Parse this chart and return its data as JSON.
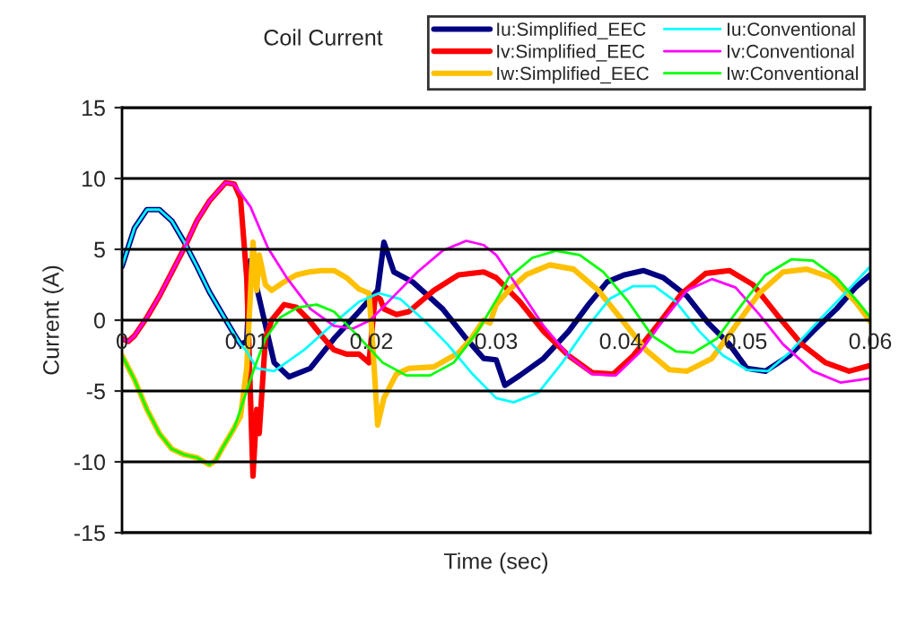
{
  "chart_data": {
    "type": "line",
    "title": "Coil Current",
    "xlabel": "Time (sec)",
    "ylabel": "Current (A)",
    "xlim": [
      0,
      0.06
    ],
    "xticks": [
      0,
      0.01,
      0.02,
      0.03,
      0.04,
      0.05,
      0.06
    ],
    "ylim": [
      -15,
      15
    ],
    "yticks": [
      -15,
      -10,
      -5,
      0,
      5,
      10,
      15
    ],
    "grid": "y",
    "legend": "top right",
    "marker": "none",
    "line_style": "solid",
    "series": [
      {
        "name": "Iu:Simplified_EEC",
        "color": "#000080",
        "x": [
          0,
          0.001,
          0.002,
          0.003,
          0.004,
          0.005,
          0.006,
          0.007,
          0.008,
          0.009,
          0.0095,
          0.01,
          0.0103,
          0.0122,
          0.0134,
          0.0151,
          0.017,
          0.019,
          0.0205,
          0.021,
          0.0218,
          0.0233,
          0.0257,
          0.0276,
          0.029,
          0.03,
          0.0307,
          0.0319,
          0.0338,
          0.0358,
          0.0374,
          0.0389,
          0.0403,
          0.0418,
          0.0434,
          0.0453,
          0.047,
          0.0487,
          0.0501,
          0.0516,
          0.0535,
          0.0554,
          0.0573,
          0.0588,
          0.06
        ],
        "values": [
          3.8,
          6.5,
          7.8,
          7.8,
          7.0,
          5.5,
          3.8,
          2.0,
          0.5,
          -1.0,
          -1.7,
          -1.5,
          4.2,
          -3.0,
          -4.0,
          -3.4,
          -1.3,
          0.6,
          2.1,
          5.5,
          3.4,
          2.7,
          0.8,
          -1.3,
          -2.7,
          -2.8,
          -4.6,
          -3.9,
          -2.7,
          -0.8,
          1.1,
          2.7,
          3.2,
          3.5,
          3.0,
          1.7,
          -0.2,
          -1.7,
          -3.4,
          -3.6,
          -2.5,
          -0.8,
          0.8,
          2.3,
          3.2
        ]
      },
      {
        "name": "Iv:Simplified_EEC",
        "color": "#ff0000",
        "x": [
          0,
          0.0005,
          0.001,
          0.002,
          0.003,
          0.004,
          0.005,
          0.006,
          0.007,
          0.0083,
          0.009,
          0.0095,
          0.01,
          0.0105,
          0.0108,
          0.011,
          0.0115,
          0.012,
          0.013,
          0.014,
          0.015,
          0.016,
          0.017,
          0.018,
          0.019,
          0.0198,
          0.0203,
          0.0207,
          0.021,
          0.022,
          0.023,
          0.025,
          0.027,
          0.029,
          0.03,
          0.0319,
          0.0338,
          0.0358,
          0.0377,
          0.0394,
          0.041,
          0.0429,
          0.0449,
          0.0468,
          0.0487,
          0.0506,
          0.0525,
          0.0545,
          0.0564,
          0.0583,
          0.06
        ],
        "values": [
          -1.3,
          -1.5,
          -1.1,
          0.2,
          1.7,
          3.4,
          5.1,
          7.0,
          8.4,
          9.7,
          9.6,
          8.6,
          3.0,
          -11.0,
          -6.3,
          -8.0,
          -1.3,
          0.0,
          1.1,
          0.9,
          0.0,
          -1.1,
          -2.1,
          -2.4,
          -2.4,
          -3.0,
          1.7,
          1.5,
          0.8,
          0.4,
          0.6,
          2.1,
          3.2,
          3.4,
          3.0,
          1.3,
          -0.8,
          -2.5,
          -3.7,
          -3.8,
          -2.5,
          -0.4,
          1.9,
          3.3,
          3.5,
          2.5,
          0.4,
          -1.7,
          -3.0,
          -3.6,
          -3.2
        ]
      },
      {
        "name": "Iw:Simplified_EEC",
        "color": "#ffc000",
        "x": [
          0,
          0.001,
          0.002,
          0.003,
          0.004,
          0.005,
          0.006,
          0.007,
          0.0075,
          0.008,
          0.009,
          0.0095,
          0.01,
          0.0105,
          0.0108,
          0.011,
          0.0115,
          0.012,
          0.013,
          0.014,
          0.015,
          0.016,
          0.017,
          0.018,
          0.019,
          0.0198,
          0.0201,
          0.0205,
          0.021,
          0.022,
          0.023,
          0.025,
          0.027,
          0.028,
          0.029,
          0.0295,
          0.03,
          0.031,
          0.0324,
          0.0343,
          0.0362,
          0.0382,
          0.0401,
          0.042,
          0.0439,
          0.0453,
          0.0473,
          0.0492,
          0.0511,
          0.053,
          0.0549,
          0.0569,
          0.0588,
          0.06
        ],
        "values": [
          -2.5,
          -4.2,
          -6.3,
          -8.0,
          -9.1,
          -9.5,
          -9.7,
          -10.2,
          -9.9,
          -9.1,
          -7.6,
          -6.8,
          -3.4,
          5.5,
          2.1,
          4.6,
          2.5,
          2.1,
          2.7,
          3.2,
          3.4,
          3.5,
          3.5,
          3.0,
          2.2,
          1.9,
          -1.7,
          -7.4,
          -5.5,
          -3.8,
          -3.4,
          -3.3,
          -2.3,
          -1.3,
          0.0,
          -0.2,
          1.1,
          2.1,
          3.2,
          3.9,
          3.6,
          2.1,
          0.0,
          -2.1,
          -3.5,
          -3.6,
          -2.7,
          -0.4,
          1.9,
          3.4,
          3.6,
          3.0,
          1.3,
          -0.1
        ]
      },
      {
        "name": "Iu:Conventional",
        "color": "#00ffff",
        "x": [
          0,
          0.001,
          0.002,
          0.003,
          0.004,
          0.005,
          0.006,
          0.007,
          0.008,
          0.009,
          0.0095,
          0.01,
          0.0108,
          0.0122,
          0.0146,
          0.017,
          0.019,
          0.0206,
          0.0223,
          0.0242,
          0.0261,
          0.0281,
          0.03,
          0.0314,
          0.0334,
          0.0353,
          0.0372,
          0.0391,
          0.041,
          0.0427,
          0.0444,
          0.0463,
          0.0482,
          0.0501,
          0.0518,
          0.0535,
          0.0559,
          0.0583,
          0.06
        ],
        "values": [
          3.8,
          6.5,
          7.8,
          7.8,
          7.0,
          5.5,
          3.8,
          2.0,
          0.5,
          -1.0,
          -1.7,
          -2.2,
          -3.4,
          -3.6,
          -2.1,
          -0.2,
          1.3,
          1.9,
          1.5,
          0.0,
          -1.7,
          -3.8,
          -5.5,
          -5.8,
          -5.1,
          -3.0,
          -0.6,
          1.5,
          2.4,
          2.4,
          1.3,
          -0.8,
          -2.5,
          -3.5,
          -3.6,
          -2.3,
          0.0,
          2.2,
          3.8
        ]
      },
      {
        "name": "Iv:Conventional",
        "color": "#ff00ff",
        "x": [
          0,
          0.0005,
          0.001,
          0.002,
          0.003,
          0.004,
          0.005,
          0.006,
          0.007,
          0.0083,
          0.009,
          0.0103,
          0.0117,
          0.0132,
          0.0151,
          0.017,
          0.0185,
          0.0199,
          0.0218,
          0.0237,
          0.0257,
          0.0276,
          0.029,
          0.03,
          0.0319,
          0.0338,
          0.0358,
          0.0377,
          0.0396,
          0.0415,
          0.0434,
          0.0453,
          0.0473,
          0.0492,
          0.0511,
          0.053,
          0.0554,
          0.0576,
          0.06
        ],
        "values": [
          -1.3,
          -1.5,
          -1.1,
          0.2,
          1.7,
          3.4,
          5.1,
          7.0,
          8.4,
          9.7,
          9.6,
          8.0,
          5.1,
          3.0,
          0.8,
          -0.4,
          -0.6,
          0.0,
          1.7,
          3.4,
          4.9,
          5.6,
          5.3,
          4.6,
          2.1,
          -0.4,
          -2.5,
          -3.8,
          -3.9,
          -2.3,
          0.0,
          2.1,
          2.9,
          2.3,
          0.4,
          -1.7,
          -3.6,
          -4.4,
          -4.1
        ]
      },
      {
        "name": "Iw:Conventional",
        "color": "#00ff00",
        "x": [
          0,
          0.001,
          0.002,
          0.003,
          0.004,
          0.005,
          0.006,
          0.007,
          0.0075,
          0.008,
          0.009,
          0.0095,
          0.0106,
          0.0115,
          0.0127,
          0.0141,
          0.0156,
          0.017,
          0.0189,
          0.0209,
          0.0228,
          0.0247,
          0.0266,
          0.0285,
          0.0302,
          0.031,
          0.0329,
          0.0348,
          0.0367,
          0.0386,
          0.0406,
          0.0425,
          0.0444,
          0.0458,
          0.0477,
          0.0497,
          0.0516,
          0.0537,
          0.0554,
          0.0573,
          0.059,
          0.06
        ],
        "values": [
          -2.5,
          -4.2,
          -6.3,
          -8.0,
          -9.1,
          -9.5,
          -9.7,
          -10.2,
          -9.9,
          -9.1,
          -7.6,
          -6.3,
          -3.4,
          -1.3,
          0.2,
          0.9,
          1.1,
          0.6,
          -1.1,
          -3.0,
          -3.9,
          -3.9,
          -3.0,
          -0.8,
          1.7,
          3.0,
          4.4,
          4.9,
          4.6,
          3.4,
          1.3,
          -1.1,
          -2.2,
          -2.3,
          -1.3,
          1.1,
          3.2,
          4.3,
          4.2,
          3.0,
          1.3,
          0.2
        ]
      }
    ]
  }
}
